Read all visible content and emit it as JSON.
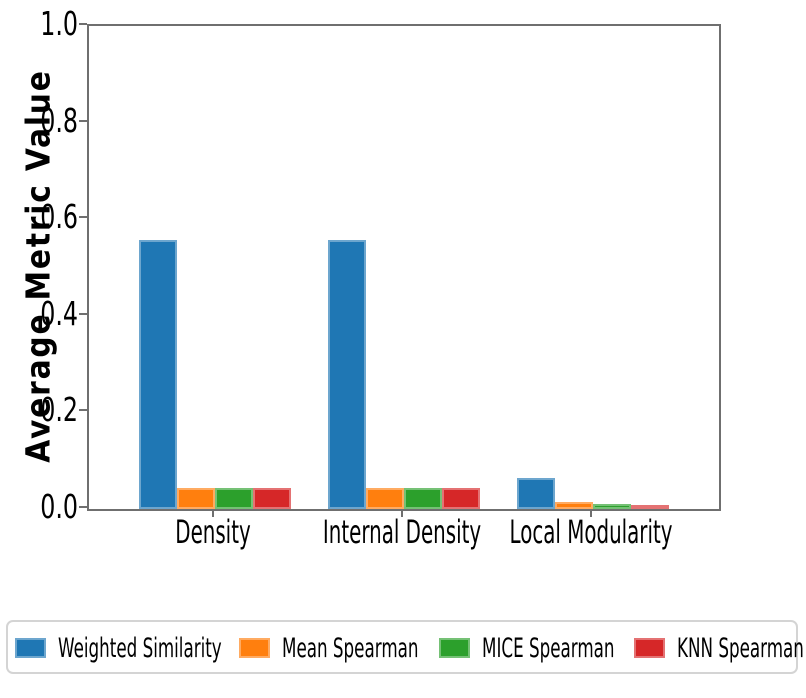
{
  "chart_data": {
    "type": "bar",
    "title": "",
    "xlabel": "",
    "ylabel": "Average Metric Value",
    "ylim": [
      0.0,
      1.0
    ],
    "yticks": [
      0.0,
      0.2,
      0.4,
      0.6,
      0.8,
      1.0
    ],
    "ytick_labels": [
      "0.0",
      "0.2",
      "0.4",
      "0.6",
      "0.8",
      "1.0"
    ],
    "categories": [
      "Density",
      "Internal Density",
      "Local Modularity"
    ],
    "series": [
      {
        "name": "Weighted Similarity",
        "color": "#1f77b4",
        "values": [
          0.557,
          0.557,
          0.065
        ]
      },
      {
        "name": "Mean Spearman",
        "color": "#ff7f0e",
        "values": [
          0.043,
          0.043,
          0.014
        ]
      },
      {
        "name": "MICE Spearman",
        "color": "#2ca02c",
        "values": [
          0.043,
          0.043,
          0.011
        ]
      },
      {
        "name": "KNN Spearman",
        "color": "#d62728",
        "values": [
          0.043,
          0.043,
          0.009
        ]
      }
    ],
    "grid": false,
    "legend_position": "bottom",
    "spine_color": "#6f6f6f",
    "background": "#ffffff"
  }
}
